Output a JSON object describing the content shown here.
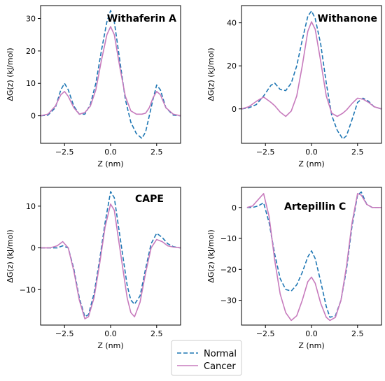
{
  "legend": [
    {
      "name": "Normal",
      "color": "#1f77b4",
      "style": "dashed"
    },
    {
      "name": "Cancer",
      "color": "#c77bbd",
      "style": "solid"
    }
  ],
  "chart_data": [
    {
      "type": "line",
      "title": "Withaferin A",
      "xlabel": "Z (nm)",
      "ylabel": "ΔG(z) (kJ/mol)",
      "xlim": [
        -3.8,
        3.8
      ],
      "ylim": [
        -8.5,
        34
      ],
      "xticks": [
        -2.5,
        0.0,
        2.5
      ],
      "xtick_labels": [
        "−2.5",
        "0.0",
        "2.5"
      ],
      "yticks": [
        0,
        10,
        20,
        30
      ],
      "ytick_labels": [
        "0",
        "10",
        "20",
        "30"
      ],
      "series": [
        {
          "name": "Normal",
          "x": [
            -3.8,
            -3.4,
            -3.0,
            -2.7,
            -2.5,
            -2.3,
            -2.0,
            -1.7,
            -1.4,
            -1.1,
            -0.8,
            -0.5,
            -0.2,
            0.0,
            0.2,
            0.5,
            0.8,
            1.1,
            1.4,
            1.7,
            1.9,
            2.1,
            2.3,
            2.5,
            2.7,
            3.0,
            3.4,
            3.8
          ],
          "y": [
            0,
            0.2,
            2.5,
            8.0,
            10.0,
            8.0,
            3.0,
            0.5,
            0.5,
            3.5,
            10.0,
            20.0,
            29.0,
            32.5,
            29.0,
            17.0,
            5.0,
            -2.0,
            -5.5,
            -7.0,
            -5.0,
            0.0,
            5.0,
            9.5,
            8.0,
            2.5,
            0.2,
            0
          ]
        },
        {
          "name": "Cancer",
          "x": [
            -3.8,
            -3.4,
            -3.0,
            -2.7,
            -2.5,
            -2.3,
            -2.0,
            -1.7,
            -1.4,
            -1.1,
            -0.8,
            -0.5,
            -0.2,
            0.0,
            0.2,
            0.5,
            0.8,
            1.1,
            1.4,
            1.7,
            1.9,
            2.1,
            2.3,
            2.5,
            2.7,
            3.0,
            3.4,
            3.8
          ],
          "y": [
            0,
            0.5,
            3.0,
            6.5,
            7.5,
            6.0,
            2.5,
            0.5,
            1.0,
            3.0,
            8.0,
            17.0,
            25.0,
            27.5,
            25.0,
            15.0,
            6.0,
            1.5,
            0.5,
            0.5,
            0.8,
            2.5,
            5.5,
            7.5,
            6.5,
            2.5,
            0.5,
            0
          ]
        }
      ]
    },
    {
      "type": "line",
      "title": "Withanone",
      "xlabel": "Z (nm)",
      "ylabel": "ΔG(z) (kJ/mol)",
      "xlim": [
        -3.8,
        3.8
      ],
      "ylim": [
        -16,
        48
      ],
      "xticks": [
        -2.5,
        0.0,
        2.5
      ],
      "xtick_labels": [
        "−2.5",
        "0.0",
        "2.5"
      ],
      "yticks": [
        0,
        20,
        40
      ],
      "ytick_labels": [
        "0",
        "20",
        "40"
      ],
      "series": [
        {
          "name": "Normal",
          "x": [
            -3.8,
            -3.4,
            -3.0,
            -2.6,
            -2.2,
            -2.0,
            -1.7,
            -1.4,
            -1.1,
            -0.8,
            -0.5,
            -0.2,
            0.0,
            0.2,
            0.5,
            0.8,
            1.1,
            1.4,
            1.7,
            1.9,
            2.2,
            2.5,
            2.8,
            3.1,
            3.4,
            3.8
          ],
          "y": [
            0,
            0.5,
            2.0,
            6.0,
            11.0,
            12.0,
            9.0,
            8.5,
            12.0,
            20.0,
            32.0,
            43.0,
            45.5,
            42.0,
            30.0,
            12.0,
            -3.0,
            -10.0,
            -14.0,
            -12.5,
            -5.0,
            3.0,
            5.0,
            3.5,
            1.0,
            0
          ]
        },
        {
          "name": "Cancer",
          "x": [
            -3.8,
            -3.4,
            -3.0,
            -2.6,
            -2.2,
            -2.0,
            -1.7,
            -1.4,
            -1.1,
            -0.8,
            -0.5,
            -0.2,
            0.0,
            0.2,
            0.5,
            0.8,
            1.1,
            1.4,
            1.7,
            1.9,
            2.2,
            2.5,
            2.8,
            3.1,
            3.4,
            3.8
          ],
          "y": [
            0,
            1.0,
            3.5,
            5.5,
            3.0,
            1.5,
            -1.5,
            -3.5,
            -1.0,
            6.0,
            20.0,
            36.0,
            40.5,
            37.0,
            22.0,
            6.0,
            -2.0,
            -3.5,
            -2.0,
            -0.5,
            2.5,
            5.0,
            4.5,
            3.0,
            1.0,
            0
          ]
        }
      ]
    },
    {
      "type": "line",
      "title": "CAPE",
      "xlabel": "Z (nm)",
      "ylabel": "ΔG(z) (kJ/mol)",
      "xlim": [
        -3.8,
        3.8
      ],
      "ylim": [
        -18.5,
        14.5
      ],
      "xticks": [
        -2.5,
        0.0,
        2.5
      ],
      "xtick_labels": [
        "−2.5",
        "0.0",
        "2.5"
      ],
      "yticks": [
        -10,
        0,
        10
      ],
      "ytick_labels": [
        "−10",
        "0",
        "10"
      ],
      "series": [
        {
          "name": "Normal",
          "x": [
            -3.8,
            -3.3,
            -2.9,
            -2.6,
            -2.3,
            -2.0,
            -1.7,
            -1.4,
            -1.2,
            -0.9,
            -0.6,
            -0.3,
            0.0,
            0.2,
            0.4,
            0.7,
            0.9,
            1.1,
            1.3,
            1.6,
            1.9,
            2.2,
            2.5,
            2.8,
            3.1,
            3.4,
            3.8
          ],
          "y": [
            0,
            0,
            0,
            0.5,
            0,
            -5.0,
            -12.0,
            -16.5,
            -16.0,
            -11.0,
            -3.0,
            6.0,
            13.5,
            12.0,
            6.0,
            -3.0,
            -9.0,
            -12.5,
            -13.5,
            -11.5,
            -5.0,
            1.0,
            3.5,
            2.5,
            1.0,
            0.3,
            0
          ]
        },
        {
          "name": "Cancer",
          "x": [
            -3.8,
            -3.3,
            -2.9,
            -2.6,
            -2.3,
            -2.0,
            -1.7,
            -1.4,
            -1.2,
            -0.9,
            -0.6,
            -0.3,
            0.0,
            0.2,
            0.4,
            0.7,
            0.9,
            1.1,
            1.3,
            1.6,
            1.9,
            2.2,
            2.5,
            2.8,
            3.1,
            3.4,
            3.8
          ],
          "y": [
            0,
            0,
            0.5,
            1.5,
            0,
            -5.5,
            -12.5,
            -17.0,
            -16.5,
            -12.0,
            -4.0,
            5.0,
            10.5,
            9.0,
            3.0,
            -6.0,
            -12.0,
            -15.5,
            -16.5,
            -13.0,
            -6.0,
            0,
            2.0,
            1.5,
            0.5,
            0.2,
            0
          ]
        }
      ]
    },
    {
      "type": "line",
      "title": "Artepillin C",
      "xlabel": "Z (nm)",
      "ylabel": "ΔG(z) (kJ/mol)",
      "xlim": [
        -3.8,
        3.8
      ],
      "ylim": [
        -38,
        6.5
      ],
      "xticks": [
        -2.5,
        0.0,
        2.5
      ],
      "xtick_labels": [
        "−2.5",
        "0.0",
        "2.5"
      ],
      "yticks": [
        -30,
        -20,
        -10,
        0
      ],
      "ytick_labels": [
        "−30",
        "−20",
        "−10",
        "0"
      ],
      "series": [
        {
          "name": "Normal",
          "x": [
            -3.5,
            -3.2,
            -2.9,
            -2.6,
            -2.3,
            -2.0,
            -1.7,
            -1.4,
            -1.1,
            -0.8,
            -0.5,
            -0.2,
            0.0,
            0.2,
            0.5,
            0.8,
            1.0,
            1.3,
            1.6,
            1.9,
            2.2,
            2.5,
            2.7,
            3.0,
            3.3,
            3.6,
            3.8
          ],
          "y": [
            0,
            0,
            0.5,
            1.5,
            -5.0,
            -15.0,
            -23.0,
            -26.5,
            -27.0,
            -25.0,
            -21.0,
            -16.0,
            -14.0,
            -16.5,
            -24.0,
            -32.0,
            -35.5,
            -35.0,
            -30.0,
            -20.0,
            -6.0,
            4.0,
            5.0,
            1.0,
            0,
            0,
            0
          ]
        },
        {
          "name": "Cancer",
          "x": [
            -3.5,
            -3.2,
            -2.9,
            -2.6,
            -2.3,
            -2.0,
            -1.7,
            -1.4,
            -1.1,
            -0.8,
            -0.5,
            -0.2,
            0.0,
            0.2,
            0.5,
            0.8,
            1.0,
            1.3,
            1.6,
            1.9,
            2.2,
            2.5,
            2.7,
            3.0,
            3.3,
            3.6,
            3.8
          ],
          "y": [
            0,
            0.5,
            2.5,
            4.5,
            -3.0,
            -17.0,
            -28.0,
            -34.0,
            -36.5,
            -35.0,
            -30.0,
            -24.0,
            -22.5,
            -24.5,
            -31.0,
            -35.5,
            -36.5,
            -35.5,
            -30.0,
            -19.0,
            -5.0,
            4.5,
            4.0,
            1.0,
            0,
            0,
            0
          ]
        }
      ]
    }
  ]
}
